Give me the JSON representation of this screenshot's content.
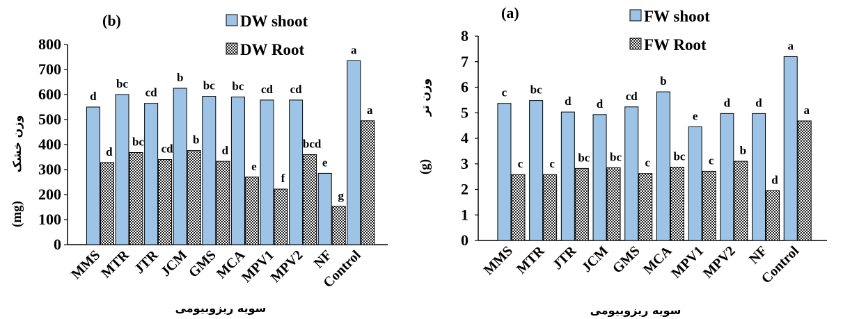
{
  "chart_data": [
    {
      "panel": "(b)",
      "type": "bar",
      "categories": [
        "MMS",
        "MTR",
        "JTR",
        "JCM",
        "GMS",
        "MCA",
        "MPV1",
        "MPV2",
        "NF",
        "Control"
      ],
      "series": [
        {
          "name": "DW shoot",
          "values": [
            550,
            600,
            565,
            625,
            593,
            590,
            578,
            578,
            285,
            735
          ],
          "letters": [
            "d",
            "bc",
            "cd",
            "b",
            "bc",
            "bc",
            "cd",
            "cd",
            "e",
            "a"
          ]
        },
        {
          "name": "DW Root",
          "values": [
            328,
            368,
            340,
            376,
            333,
            270,
            222,
            360,
            153,
            495
          ],
          "letters": [
            "d",
            "bc",
            "cd",
            "b",
            "d",
            "e",
            "f",
            "bcd",
            "g",
            "a"
          ]
        }
      ],
      "ylim": [
        0,
        800
      ],
      "yticks": [
        "0",
        "100",
        "200",
        "300",
        "400",
        "500",
        "600",
        "700",
        "800"
      ],
      "ylabel_latin": "(mg)",
      "ylabel_farsi": "وزن خشک",
      "xlabel": "سویه ریزوبیومی",
      "legend": "top-right"
    },
    {
      "panel": "(a)",
      "type": "bar",
      "categories": [
        "MMS",
        "MTR",
        "JTR",
        "JCM",
        "GMS",
        "MCA",
        "MPV1",
        "MPV2",
        "NF",
        "Control"
      ],
      "series": [
        {
          "name": "FW shoot",
          "values": [
            5.37,
            5.48,
            5.03,
            4.93,
            5.23,
            5.82,
            4.45,
            4.97,
            4.97,
            7.2
          ],
          "letters": [
            "c",
            "bc",
            "d",
            "d",
            "cd",
            "b",
            "e",
            "d",
            "d",
            "a"
          ]
        },
        {
          "name": "FW Root",
          "values": [
            2.58,
            2.58,
            2.82,
            2.85,
            2.62,
            2.87,
            2.71,
            3.1,
            1.95,
            4.68
          ],
          "letters": [
            "c",
            "c",
            "bc",
            "bc",
            "c",
            "bc",
            "c",
            "b",
            "d",
            "a"
          ]
        }
      ],
      "ylim": [
        0,
        8
      ],
      "yticks": [
        "0",
        "1",
        "2",
        "3",
        "4",
        "5",
        "6",
        "7",
        "8"
      ],
      "ylabel_latin": "(g)",
      "ylabel_farsi": "وزن تر",
      "xlabel": "سویه ریزوبیومی",
      "legend": "top-right"
    }
  ],
  "colors": {
    "shoot": "#9dc3e6",
    "root_a": "#222222",
    "root_b": "#ffffff",
    "axis": "#000000"
  }
}
